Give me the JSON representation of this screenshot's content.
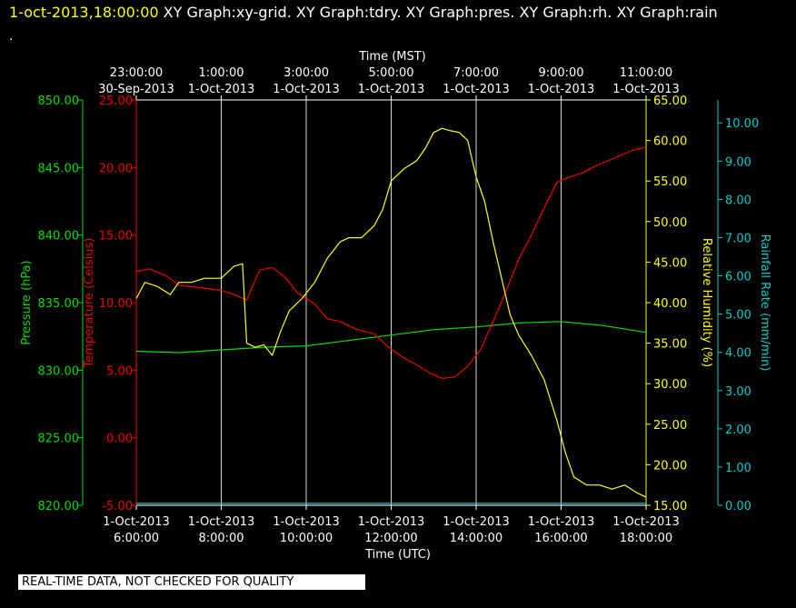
{
  "header": {
    "timestamp": "1-oct-2013,18:00:00",
    "graphs": "  XY Graph:xy-grid.  XY Graph:tdry.  XY Graph:pres.  XY Graph:rh.  XY Graph:rain",
    "dot": "."
  },
  "notice": "REAL-TIME DATA, NOT CHECKED FOR QUALITY",
  "colors": {
    "pressure": "#00dd00",
    "temperature": "#ee0000",
    "humidity": "#ffff00",
    "rain": "#00cccc",
    "grid": "#ffffff",
    "background": "#000000"
  },
  "chart_data": {
    "type": "line",
    "x_units": "hours UTC, 1-Oct-2013",
    "xlim": [
      6,
      18
    ],
    "top_axis": {
      "title": "Time (MST)",
      "ticks": [
        {
          "x": 6,
          "l1": "23:00:00",
          "l2": "30-Sep-2013"
        },
        {
          "x": 8,
          "l1": "1:00:00",
          "l2": "1-Oct-2013"
        },
        {
          "x": 10,
          "l1": "3:00:00",
          "l2": "1-Oct-2013"
        },
        {
          "x": 12,
          "l1": "5:00:00",
          "l2": "1-Oct-2013"
        },
        {
          "x": 14,
          "l1": "7:00:00",
          "l2": "1-Oct-2013"
        },
        {
          "x": 16,
          "l1": "9:00:00",
          "l2": "1-Oct-2013"
        },
        {
          "x": 18,
          "l1": "11:00:00",
          "l2": "1-Oct-2013"
        }
      ]
    },
    "bottom_axis": {
      "title": "Time (UTC)",
      "ticks": [
        {
          "x": 6,
          "l1": "1-Oct-2013",
          "l2": "6:00:00"
        },
        {
          "x": 8,
          "l1": "1-Oct-2013",
          "l2": "8:00:00"
        },
        {
          "x": 10,
          "l1": "1-Oct-2013",
          "l2": "10:00:00"
        },
        {
          "x": 12,
          "l1": "1-Oct-2013",
          "l2": "12:00:00"
        },
        {
          "x": 14,
          "l1": "1-Oct-2013",
          "l2": "14:00:00"
        },
        {
          "x": 16,
          "l1": "1-Oct-2013",
          "l2": "16:00:00"
        },
        {
          "x": 18,
          "l1": "1-Oct-2013",
          "l2": "18:00:00"
        }
      ]
    },
    "axes": [
      {
        "key": "pressure",
        "label": "Pressure (hPa)",
        "side": "left-outer",
        "ylim": [
          820,
          850
        ],
        "ticks": [
          "820.00",
          "825.00",
          "830.00",
          "835.00",
          "840.00",
          "845.00",
          "850.00"
        ]
      },
      {
        "key": "temperature",
        "label": "Temperature (Celsius)",
        "side": "left-inner",
        "ylim": [
          -5,
          25
        ],
        "ticks": [
          "-5.00",
          "0.00",
          "5.00",
          "10.00",
          "15.00",
          "20.00",
          "25.00"
        ]
      },
      {
        "key": "humidity",
        "label": "Relative Humidity (%)",
        "side": "right-inner",
        "ylim": [
          15,
          65
        ],
        "ticks": [
          "15.00",
          "20.00",
          "25.00",
          "30.00",
          "35.00",
          "40.00",
          "45.00",
          "50.00",
          "55.00",
          "60.00",
          "65.00"
        ]
      },
      {
        "key": "rain",
        "label": "Rainfall Rate (mm/min)",
        "side": "right-outer",
        "ylim": [
          0,
          10.6
        ],
        "ticks": [
          "0.00",
          "1.00",
          "2.00",
          "3.00",
          "4.00",
          "5.00",
          "6.00",
          "7.00",
          "8.00",
          "9.00",
          "10.00"
        ]
      }
    ],
    "series": [
      {
        "key": "pressure",
        "axis": "pressure",
        "points": [
          [
            6.0,
            831.4
          ],
          [
            7.0,
            831.3
          ],
          [
            8.0,
            831.5
          ],
          [
            9.0,
            831.7
          ],
          [
            10.0,
            831.8
          ],
          [
            11.0,
            832.2
          ],
          [
            12.0,
            832.6
          ],
          [
            13.0,
            833.0
          ],
          [
            14.0,
            833.2
          ],
          [
            15.0,
            833.5
          ],
          [
            16.0,
            833.6
          ],
          [
            17.0,
            833.3
          ],
          [
            18.0,
            832.8
          ]
        ]
      },
      {
        "key": "temperature",
        "axis": "temperature",
        "points": [
          [
            6.0,
            12.3
          ],
          [
            6.3,
            12.5
          ],
          [
            6.7,
            12.0
          ],
          [
            7.0,
            11.3
          ],
          [
            7.5,
            11.1
          ],
          [
            8.0,
            10.9
          ],
          [
            8.3,
            10.6
          ],
          [
            8.6,
            10.2
          ],
          [
            8.9,
            12.4
          ],
          [
            9.2,
            12.6
          ],
          [
            9.5,
            11.9
          ],
          [
            9.8,
            10.7
          ],
          [
            10.2,
            9.9
          ],
          [
            10.5,
            8.8
          ],
          [
            10.8,
            8.6
          ],
          [
            11.2,
            8.0
          ],
          [
            11.6,
            7.7
          ],
          [
            11.9,
            6.8
          ],
          [
            12.3,
            5.9
          ],
          [
            12.6,
            5.4
          ],
          [
            12.9,
            4.8
          ],
          [
            13.2,
            4.4
          ],
          [
            13.5,
            4.5
          ],
          [
            13.8,
            5.3
          ],
          [
            14.1,
            6.5
          ],
          [
            14.4,
            8.6
          ],
          [
            14.7,
            10.8
          ],
          [
            15.0,
            13.2
          ],
          [
            15.3,
            15.0
          ],
          [
            15.6,
            17.0
          ],
          [
            15.9,
            18.9
          ],
          [
            16.2,
            19.3
          ],
          [
            16.5,
            19.6
          ],
          [
            16.8,
            20.1
          ],
          [
            17.1,
            20.5
          ],
          [
            17.4,
            20.9
          ],
          [
            17.7,
            21.3
          ],
          [
            18.0,
            21.5
          ]
        ]
      },
      {
        "key": "humidity",
        "axis": "humidity",
        "points": [
          [
            6.0,
            40.5
          ],
          [
            6.2,
            42.5
          ],
          [
            6.5,
            42.0
          ],
          [
            6.8,
            41.0
          ],
          [
            7.0,
            42.5
          ],
          [
            7.3,
            42.5
          ],
          [
            7.6,
            43.0
          ],
          [
            8.0,
            43.0
          ],
          [
            8.3,
            44.5
          ],
          [
            8.5,
            44.8
          ],
          [
            8.6,
            35.0
          ],
          [
            8.8,
            34.5
          ],
          [
            9.0,
            34.8
          ],
          [
            9.2,
            33.5
          ],
          [
            9.4,
            36.5
          ],
          [
            9.6,
            39.0
          ],
          [
            9.9,
            40.5
          ],
          [
            10.2,
            42.5
          ],
          [
            10.5,
            45.5
          ],
          [
            10.8,
            47.5
          ],
          [
            11.0,
            48.0
          ],
          [
            11.3,
            48.0
          ],
          [
            11.6,
            49.5
          ],
          [
            11.8,
            51.5
          ],
          [
            12.0,
            55.0
          ],
          [
            12.3,
            56.5
          ],
          [
            12.6,
            57.5
          ],
          [
            12.8,
            59.0
          ],
          [
            13.0,
            61.0
          ],
          [
            13.2,
            61.5
          ],
          [
            13.4,
            61.2
          ],
          [
            13.6,
            61.0
          ],
          [
            13.8,
            60.0
          ],
          [
            14.0,
            55.5
          ],
          [
            14.2,
            52.5
          ],
          [
            14.4,
            47.5
          ],
          [
            14.6,
            43.0
          ],
          [
            14.8,
            38.5
          ],
          [
            15.0,
            36.0
          ],
          [
            15.3,
            33.5
          ],
          [
            15.6,
            30.5
          ],
          [
            15.9,
            25.5
          ],
          [
            16.1,
            21.5
          ],
          [
            16.3,
            18.5
          ],
          [
            16.6,
            17.5
          ],
          [
            16.9,
            17.5
          ],
          [
            17.2,
            17.0
          ],
          [
            17.5,
            17.5
          ],
          [
            17.8,
            16.5
          ],
          [
            18.0,
            16.0
          ]
        ]
      },
      {
        "key": "rain",
        "axis": "rain",
        "points": [
          [
            6.0,
            0.05
          ],
          [
            18.0,
            0.05
          ]
        ]
      }
    ]
  }
}
